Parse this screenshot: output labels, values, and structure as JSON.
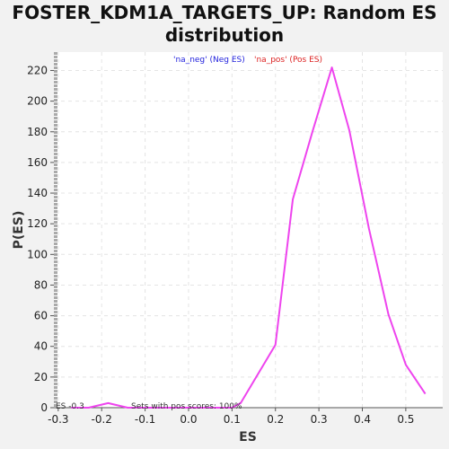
{
  "chart_data": {
    "type": "line",
    "title_line1": "FOSTER_KDM1A_TARGETS_UP: Random ES",
    "title_line2": "distribution",
    "xlabel": "ES",
    "ylabel": "P(ES)",
    "xlim": [
      -0.31,
      0.585
    ],
    "ylim": [
      0,
      232
    ],
    "xticks": [
      -0.3,
      -0.2,
      -0.1,
      0.0,
      0.1,
      0.2,
      0.3,
      0.4,
      0.5
    ],
    "xtick_labels": [
      "-0.3",
      "-0.2",
      "-0.1",
      "0.0",
      "0.1",
      "0.2",
      "0.3",
      "0.4",
      "0.5"
    ],
    "yticks": [
      0,
      20,
      40,
      60,
      80,
      100,
      120,
      140,
      160,
      180,
      200,
      220
    ],
    "grid": true,
    "legend": [
      {
        "label": "'na_neg' (Neg ES)",
        "color": "#2222dd"
      },
      {
        "label": "'na_pos' (Pos ES)",
        "color": "#dd2222"
      }
    ],
    "legend_position": "top-center",
    "annotations": {
      "left": "ES -0.3",
      "center": "Sets with pos scores: 100%"
    },
    "series": [
      {
        "color": "#ee44ee",
        "x": [
          -0.27,
          -0.23,
          -0.185,
          -0.14,
          -0.1,
          -0.06,
          -0.02,
          0.02,
          0.06,
          0.1,
          0.12,
          0.2,
          0.24,
          0.285,
          0.33,
          0.37,
          0.415,
          0.46,
          0.5,
          0.545
        ],
        "y": [
          0,
          0,
          3,
          0,
          0,
          0,
          0,
          0,
          0,
          0,
          3,
          41,
          136,
          180,
          222,
          181,
          117,
          61,
          28,
          9
        ]
      }
    ]
  }
}
